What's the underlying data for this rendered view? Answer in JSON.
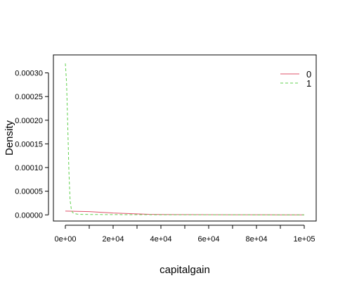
{
  "chart_data": {
    "type": "line",
    "title": "",
    "xlabel": "capitalgain",
    "ylabel": "Density",
    "xlim": [
      -5000,
      105000
    ],
    "ylim": [
      -1.3e-05,
      0.000338
    ],
    "x_ticks": [
      0,
      10000,
      20000,
      30000,
      40000,
      50000,
      60000,
      70000,
      80000,
      90000,
      100000
    ],
    "x_tick_labels": [
      {
        "value": 0,
        "label": "0e+00"
      },
      {
        "value": 20000,
        "label": "2e+04"
      },
      {
        "value": 40000,
        "label": "4e+04"
      },
      {
        "value": 60000,
        "label": "6e+04"
      },
      {
        "value": 80000,
        "label": "8e+04"
      },
      {
        "value": 100000,
        "label": "1e+05"
      }
    ],
    "y_ticks": [
      0,
      5e-05,
      0.0001,
      0.00015,
      0.0002,
      0.00025,
      0.0003
    ],
    "y_tick_labels": [
      "0.00000",
      "0.00005",
      "0.00010",
      "0.00015",
      "0.00020",
      "0.00025",
      "0.00030"
    ],
    "grid": false,
    "legend_position": "top-right",
    "series": [
      {
        "name": "0",
        "color": "#DF536B",
        "dash": "solid",
        "x": [
          0,
          5000,
          10000,
          15000,
          20000,
          25000,
          30000,
          35000,
          40000,
          50000,
          60000,
          70000,
          80000,
          90000,
          100000
        ],
        "y": [
          8e-06,
          7.5e-06,
          7e-06,
          5.5e-06,
          4e-06,
          3e-06,
          2e-06,
          1.2e-06,
          8e-07,
          5e-07,
          4e-07,
          3e-07,
          2e-07,
          1e-07,
          1e-07
        ]
      },
      {
        "name": "1",
        "color": "#61D04F",
        "dash": "dashed",
        "x": [
          0,
          500,
          1000,
          1500,
          2000,
          2500,
          3000,
          4000,
          5000,
          7000,
          10000,
          20000,
          40000,
          60000,
          80000,
          100000
        ],
        "y": [
          0.00032,
          0.00028,
          0.00019,
          9e-05,
          3e-05,
          1.2e-05,
          5e-06,
          2.5e-06,
          1.5e-06,
          1e-06,
          8e-07,
          5e-07,
          3e-07,
          2e-07,
          1e-07,
          1e-07
        ]
      }
    ]
  }
}
